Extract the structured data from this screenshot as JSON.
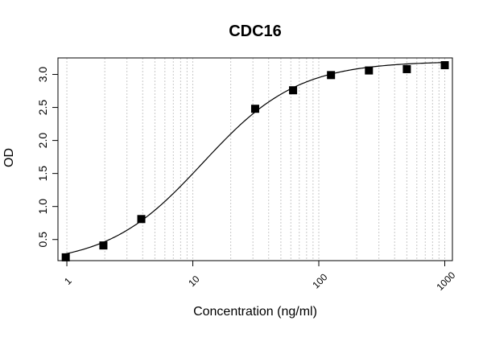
{
  "chart_data": {
    "type": "scatter",
    "title": "CDC16",
    "xlabel": "Concentration (ng/ml)",
    "ylabel": "OD",
    "x_scale": "log",
    "xlim": [
      0.85,
      1150
    ],
    "ylim": [
      0.18,
      3.25
    ],
    "x_ticks": [
      1,
      10,
      100,
      1000
    ],
    "x_tick_labels": [
      "1",
      "10",
      "100",
      "1000"
    ],
    "y_ticks": [
      0.5,
      1.0,
      1.5,
      2.0,
      2.5,
      3.0
    ],
    "y_tick_labels": [
      "0.5",
      "1.0",
      "1.5",
      "2.0",
      "2.5",
      "3.0"
    ],
    "grid": "vertical dotted, log minor",
    "series": [
      {
        "points": [
          {
            "x": 0.98,
            "y": 0.23
          },
          {
            "x": 1.95,
            "y": 0.41
          },
          {
            "x": 3.9,
            "y": 0.81
          },
          {
            "x": 31.25,
            "y": 2.48
          },
          {
            "x": 62.5,
            "y": 2.76
          },
          {
            "x": 125,
            "y": 2.99
          },
          {
            "x": 250,
            "y": 3.06
          },
          {
            "x": 500,
            "y": 3.08
          },
          {
            "x": 1000,
            "y": 3.14
          }
        ],
        "marker": "square",
        "color": "#000000"
      }
    ],
    "fit": {
      "type": "4PL",
      "bottom": 0.12,
      "top": 3.2,
      "ec50": 12,
      "hill": 1.15,
      "color": "#000000"
    }
  }
}
